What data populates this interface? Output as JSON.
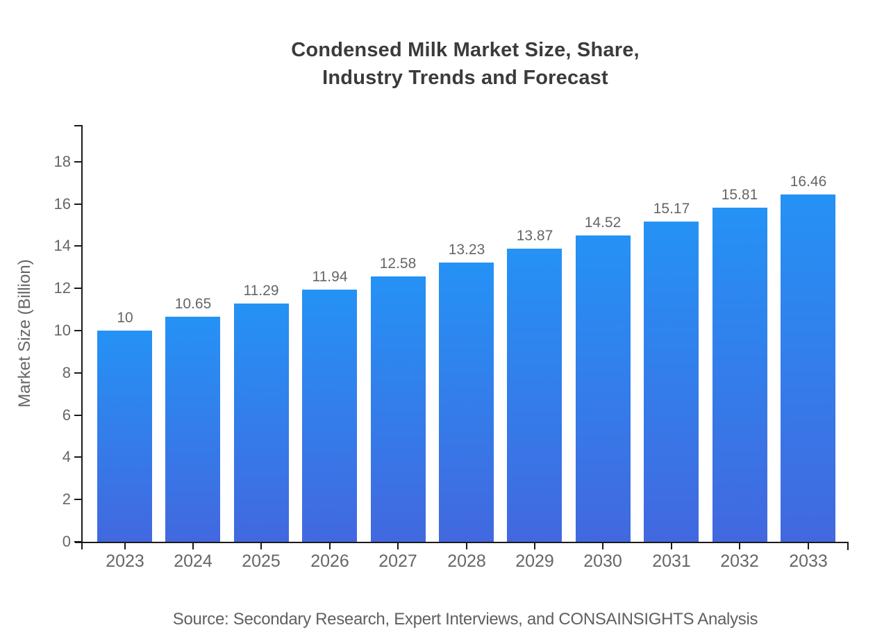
{
  "chart_data": {
    "type": "bar",
    "title": "Condensed Milk Market Size, Share,\nIndustry Trends and Forecast",
    "ylabel": "Market Size (Billion)",
    "xlabel": "",
    "source": "Source: Secondary Research, Expert Interviews, and CONSAINSIGHTS Analysis",
    "categories": [
      "2023",
      "2024",
      "2025",
      "2026",
      "2027",
      "2028",
      "2029",
      "2030",
      "2031",
      "2032",
      "2033"
    ],
    "values": [
      10,
      10.65,
      11.29,
      11.94,
      12.58,
      13.23,
      13.87,
      14.52,
      15.17,
      15.81,
      16.46
    ],
    "value_labels": [
      "10",
      "10.65",
      "11.29",
      "11.94",
      "12.58",
      "13.23",
      "13.87",
      "14.52",
      "15.17",
      "15.81",
      "16.46"
    ],
    "yticks": [
      0,
      2,
      4,
      6,
      8,
      10,
      12,
      14,
      16,
      18
    ],
    "ylim": [
      0,
      19.7
    ],
    "grid": false,
    "legend": "none",
    "colors": {
      "bar_top": "#2592F5",
      "bar_bottom": "#4268DF",
      "axis": "#1a1a1a",
      "tick_label": "#666666",
      "value_label": "#666666",
      "title": "#3b3b3b",
      "source": "#606060"
    }
  }
}
